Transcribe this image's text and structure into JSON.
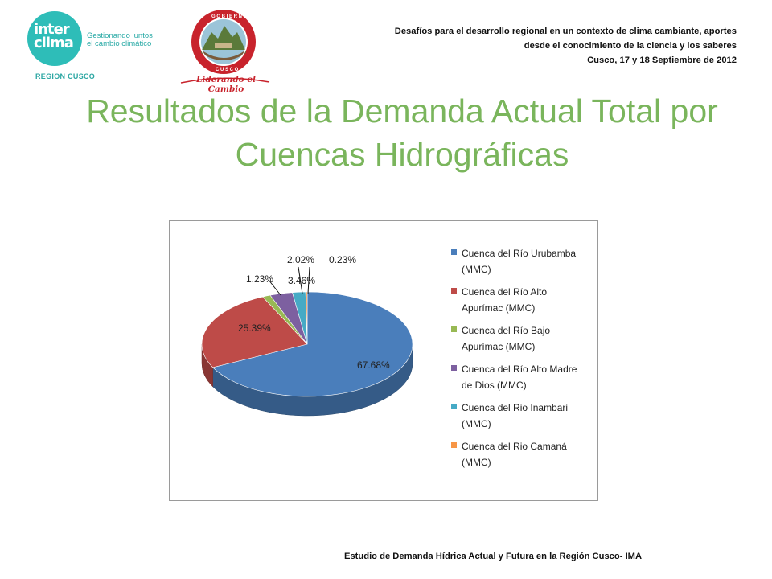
{
  "logo": {
    "brand_line1": "inter",
    "brand_line2": "clima",
    "tagline": "Gestionando juntos\nel cambio climático",
    "region": "REGION CUSCO"
  },
  "gob_logo": {
    "motto": "Liderando el Cambio"
  },
  "header": {
    "line1": "Desafíos para el desarrollo regional en un contexto de clima cambiante, aportes",
    "line2": "desde el conocimiento de la ciencia y los saberes",
    "line3": "Cusco, 17 y 18 Septiembre de 2012"
  },
  "title": "Resultados de la Demanda Actual Total por Cuencas Hidrográficas",
  "footer": "Estudio de Demanda Hídrica Actual  y Futura en la Región Cusco- IMA",
  "chart_data": {
    "type": "pie",
    "title": "",
    "categories": [
      "Cuenca del Río Urubamba (MMC)",
      "Cuenca del Río Alto Apurímac (MMC)",
      "Cuenca del Río Bajo Apurímac (MMC)",
      "Cuenca del Río Alto Madre de Dios (MMC)",
      "Cuenca del Rio Inambari (MMC)",
      "Cuenca del Rio Camaná (MMC)"
    ],
    "values": [
      67.68,
      25.39,
      1.23,
      3.46,
      2.02,
      0.23
    ],
    "labels": [
      "67.68%",
      "25.39%",
      "1.23%",
      "3.46%",
      "2.02%",
      "0.23%"
    ],
    "colors": [
      "#4a7ebb",
      "#be4b48",
      "#98b954",
      "#7d60a0",
      "#46aac5",
      "#f79646"
    ],
    "legend_position": "right",
    "style": "3d"
  }
}
